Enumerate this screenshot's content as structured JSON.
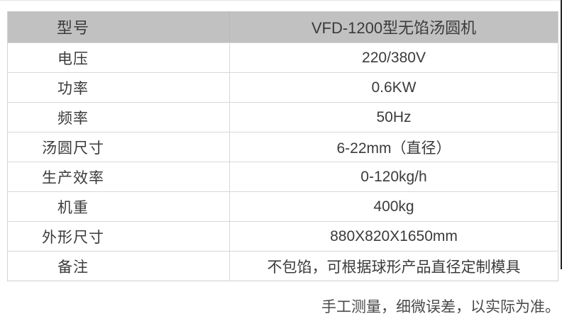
{
  "table": {
    "header": {
      "label": "型号",
      "value": "VFD-1200型无馅汤圆机"
    },
    "rows": [
      {
        "label": "电压",
        "value": "220/380V"
      },
      {
        "label": "功率",
        "value": "0.6KW"
      },
      {
        "label": "频率",
        "value": "50Hz"
      },
      {
        "label": "汤圆尺寸",
        "value": "6-22mm（直径）"
      },
      {
        "label": "生产效率",
        "value": "0-120kg/h"
      },
      {
        "label": "机重",
        "value": "400kg"
      },
      {
        "label": "外形尺寸",
        "value": "880X820X1650mm"
      },
      {
        "label": "备注",
        "value": "不包馅，可根据球形产品直径定制模具"
      }
    ]
  },
  "footer": {
    "note": "手工测量，细微误差，以实际为准。"
  },
  "colors": {
    "header_bg": "#c1c1c1",
    "table_border": "#d8d8d8",
    "text": "#3b3b3b",
    "footnote_text": "#4a4a4a",
    "edge_bar": "#262626"
  }
}
